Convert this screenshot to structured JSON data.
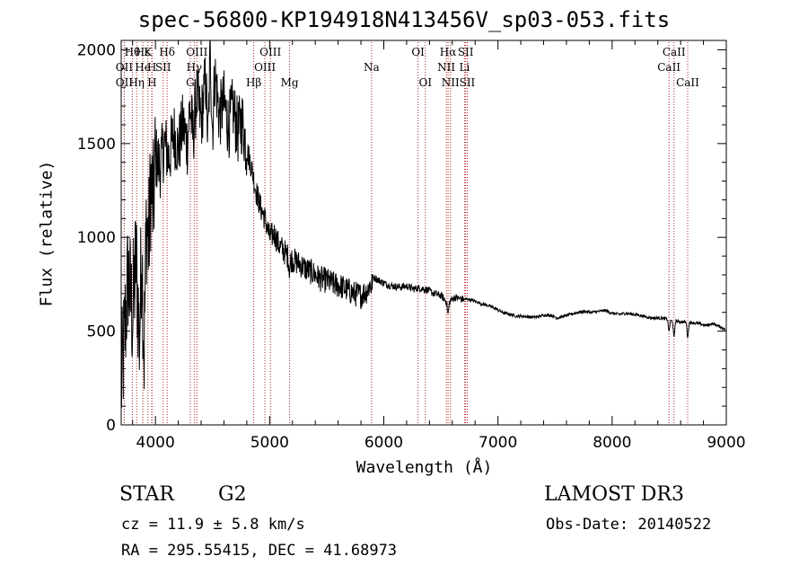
{
  "chart_data": {
    "type": "line",
    "title": "spec-56800-KP194918N413456V_sp03-053.fits",
    "xlabel": "Wavelength (Å)",
    "ylabel": "Flux (relative)",
    "xlim": [
      3700,
      9000
    ],
    "ylim": [
      0,
      2050
    ],
    "x_ticks": [
      4000,
      5000,
      6000,
      7000,
      8000,
      9000
    ],
    "y_ticks": [
      0,
      500,
      1000,
      1500,
      2000
    ],
    "series": [
      {
        "name": "flux",
        "color": "#000000",
        "points": [
          [
            3700,
            200
          ],
          [
            3730,
            480
          ],
          [
            3760,
            800
          ],
          [
            3800,
            580
          ],
          [
            3830,
            900
          ],
          [
            3860,
            450
          ],
          [
            3880,
            980
          ],
          [
            3900,
            350
          ],
          [
            3920,
            1100
          ],
          [
            3940,
            950
          ],
          [
            3960,
            1300
          ],
          [
            3980,
            1150
          ],
          [
            4000,
            1430
          ],
          [
            4040,
            1380
          ],
          [
            4080,
            1500
          ],
          [
            4120,
            1420
          ],
          [
            4160,
            1560
          ],
          [
            4200,
            1470
          ],
          [
            4240,
            1600
          ],
          [
            4280,
            1500
          ],
          [
            4300,
            1700
          ],
          [
            4330,
            1540
          ],
          [
            4360,
            1760
          ],
          [
            4400,
            1620
          ],
          [
            4440,
            1850
          ],
          [
            4460,
            1500
          ],
          [
            4480,
            2000
          ],
          [
            4500,
            1560
          ],
          [
            4520,
            1880
          ],
          [
            4560,
            1640
          ],
          [
            4600,
            1720
          ],
          [
            4640,
            1590
          ],
          [
            4680,
            1690
          ],
          [
            4720,
            1560
          ],
          [
            4760,
            1620
          ],
          [
            4800,
            1470
          ],
          [
            4840,
            1380
          ],
          [
            4880,
            1250
          ],
          [
            4920,
            1160
          ],
          [
            4960,
            1100
          ],
          [
            5000,
            1000
          ],
          [
            5040,
            1020
          ],
          [
            5080,
            960
          ],
          [
            5120,
            930
          ],
          [
            5160,
            900
          ],
          [
            5200,
            880
          ],
          [
            5260,
            860
          ],
          [
            5320,
            830
          ],
          [
            5380,
            810
          ],
          [
            5440,
            780
          ],
          [
            5500,
            770
          ],
          [
            5560,
            750
          ],
          [
            5620,
            740
          ],
          [
            5680,
            720
          ],
          [
            5740,
            700
          ],
          [
            5800,
            690
          ],
          [
            5860,
            720
          ],
          [
            5900,
            790
          ],
          [
            5960,
            770
          ],
          [
            6020,
            750
          ],
          [
            6080,
            740
          ],
          [
            6140,
            735
          ],
          [
            6200,
            740
          ],
          [
            6260,
            725
          ],
          [
            6320,
            730
          ],
          [
            6380,
            720
          ],
          [
            6440,
            700
          ],
          [
            6500,
            690
          ],
          [
            6560,
            650
          ],
          [
            6620,
            680
          ],
          [
            6680,
            670
          ],
          [
            6740,
            670
          ],
          [
            6800,
            660
          ],
          [
            6860,
            645
          ],
          [
            6920,
            635
          ],
          [
            6980,
            620
          ],
          [
            7040,
            600
          ],
          [
            7100,
            590
          ],
          [
            7160,
            580
          ],
          [
            7220,
            580
          ],
          [
            7280,
            575
          ],
          [
            7340,
            575
          ],
          [
            7400,
            585
          ],
          [
            7460,
            585
          ],
          [
            7520,
            570
          ],
          [
            7580,
            580
          ],
          [
            7640,
            590
          ],
          [
            7700,
            600
          ],
          [
            7760,
            605
          ],
          [
            7820,
            600
          ],
          [
            7880,
            605
          ],
          [
            7940,
            610
          ],
          [
            8000,
            595
          ],
          [
            8060,
            590
          ],
          [
            8120,
            595
          ],
          [
            8180,
            590
          ],
          [
            8240,
            585
          ],
          [
            8300,
            575
          ],
          [
            8360,
            570
          ],
          [
            8420,
            570
          ],
          [
            8480,
            565
          ],
          [
            8520,
            555
          ],
          [
            8560,
            555
          ],
          [
            8600,
            550
          ],
          [
            8660,
            548
          ],
          [
            8700,
            545
          ],
          [
            8760,
            540
          ],
          [
            8820,
            530
          ],
          [
            8880,
            540
          ],
          [
            8940,
            525
          ],
          [
            8990,
            510
          ]
        ],
        "noise": [
          {
            "from": 3700,
            "to": 4000,
            "amplitude": 350
          },
          {
            "from": 4000,
            "to": 4800,
            "amplitude": 180
          },
          {
            "from": 4800,
            "to": 5900,
            "amplitude": 70
          },
          {
            "from": 5900,
            "to": 6700,
            "amplitude": 20
          },
          {
            "from": 6700,
            "to": 9000,
            "amplitude": 8
          }
        ],
        "absorption": [
          {
            "center": 8498,
            "depth": 60
          },
          {
            "center": 8542,
            "depth": 90
          },
          {
            "center": 8662,
            "depth": 80
          },
          {
            "center": 6563,
            "depth": 60
          },
          {
            "center": 5892,
            "depth": 40
          },
          {
            "center": 5175,
            "depth": 60
          }
        ]
      }
    ],
    "lines": [
      {
        "label": "Hθ",
        "wavelength": 3798,
        "row": 0
      },
      {
        "label": "Hε",
        "wavelength": 3889,
        "row": 0
      },
      {
        "label": "K",
        "wavelength": 3934,
        "row": 0
      },
      {
        "label": "Hδ",
        "wavelength": 4102,
        "row": 0
      },
      {
        "label": "OIII",
        "wavelength": 4363,
        "row": 0
      },
      {
        "label": "OIII",
        "wavelength": 5007,
        "row": 0
      },
      {
        "label": "OI",
        "wavelength": 6300,
        "row": 0
      },
      {
        "label": "Hα",
        "wavelength": 6563,
        "row": 0
      },
      {
        "label": "SII",
        "wavelength": 6717,
        "row": 0
      },
      {
        "label": "CaII",
        "wavelength": 8542,
        "row": 0
      },
      {
        "label": "OII",
        "wavelength": 3727,
        "row": 1
      },
      {
        "label": "He",
        "wavelength": 3889,
        "row": 1
      },
      {
        "label": "H",
        "wavelength": 3968,
        "row": 1
      },
      {
        "label": "SII",
        "wavelength": 4068,
        "row": 1
      },
      {
        "label": "Hγ",
        "wavelength": 4340,
        "row": 1
      },
      {
        "label": "OIII",
        "wavelength": 4959,
        "row": 1
      },
      {
        "label": "Na",
        "wavelength": 5893,
        "row": 1
      },
      {
        "label": "NII",
        "wavelength": 6548,
        "row": 1
      },
      {
        "label": "Li",
        "wavelength": 6707,
        "row": 1
      },
      {
        "label": "CaII",
        "wavelength": 8498,
        "row": 1
      },
      {
        "label": "OII",
        "wavelength": 3727,
        "row": 2
      },
      {
        "label": "Hη",
        "wavelength": 3835,
        "row": 2
      },
      {
        "label": "H",
        "wavelength": 3970,
        "row": 2
      },
      {
        "label": "G",
        "wavelength": 4305,
        "row": 2
      },
      {
        "label": "Hβ",
        "wavelength": 4861,
        "row": 2
      },
      {
        "label": "Mg",
        "wavelength": 5175,
        "row": 2
      },
      {
        "label": "OI",
        "wavelength": 6364,
        "row": 2
      },
      {
        "label": "NII",
        "wavelength": 6584,
        "row": 2
      },
      {
        "label": "SII",
        "wavelength": 6731,
        "row": 2
      },
      {
        "label": "CaII",
        "wavelength": 8662,
        "row": 2
      }
    ]
  },
  "info": {
    "object_type": "STAR",
    "subclass": "G2",
    "survey": "LAMOST DR3",
    "cz": "cz = 11.9 ± 5.8 km/s",
    "obs_date": "Obs-Date: 20140522",
    "radec": "RA = 295.55415, DEC =  41.68973"
  }
}
